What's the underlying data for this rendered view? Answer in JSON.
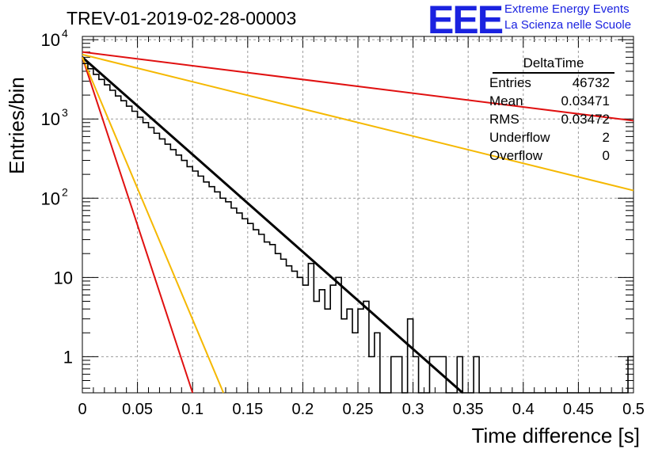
{
  "header": {
    "title": "TREV-01-2019-02-28-00003",
    "logo": "EEE",
    "logo_line1": "Extreme Energy Events",
    "logo_line2": "La Scienza nelle Scuole"
  },
  "stats_box": {
    "name": "DeltaTime",
    "rows": [
      {
        "label": "Entries",
        "value": "46732"
      },
      {
        "label": "Mean",
        "value": "0.03471"
      },
      {
        "label": "RMS",
        "value": "0.03472"
      },
      {
        "label": "Underflow",
        "value": "2"
      },
      {
        "label": "Overflow",
        "value": "0"
      }
    ]
  },
  "chart_data": {
    "type": "line",
    "title": "TREV-01-2019-02-28-00003",
    "xlabel": "Time difference [s]",
    "ylabel": "Entries/bin",
    "xlim": [
      0,
      0.5
    ],
    "ylim": [
      0.35,
      11000
    ],
    "yscale": "log",
    "grid": true,
    "x_ticks": [
      "0",
      "0.05",
      "0.1",
      "0.15",
      "0.2",
      "0.25",
      "0.3",
      "0.35",
      "0.4",
      "0.45",
      "0.5"
    ],
    "y_ticks": [
      {
        "value": 1,
        "label": "1"
      },
      {
        "value": 10,
        "label": "10"
      },
      {
        "value": 100,
        "label": "10^2"
      },
      {
        "value": 1000,
        "label": "10^3"
      },
      {
        "value": 10000,
        "label": "10^4"
      }
    ],
    "histogram": {
      "bin_width": 0.005,
      "values": [
        5000,
        4300,
        3650,
        3150,
        2700,
        2300,
        1950,
        1700,
        1450,
        1250,
        1050,
        900,
        780,
        660,
        560,
        480,
        410,
        350,
        300,
        250,
        220,
        190,
        160,
        140,
        120,
        100,
        90,
        75,
        65,
        55,
        48,
        40,
        35,
        28,
        26,
        20,
        17,
        14,
        12,
        10,
        8,
        15,
        5,
        7,
        4,
        8,
        10,
        3,
        4,
        2,
        4,
        5,
        1,
        2,
        0,
        0,
        1,
        1,
        0,
        3,
        1,
        0,
        0,
        1,
        1,
        1,
        0,
        0,
        1,
        0,
        0,
        1,
        0,
        0,
        0,
        0,
        0,
        0,
        0,
        0,
        0,
        0,
        0,
        0,
        0,
        0,
        0,
        0,
        0,
        0,
        0,
        0,
        0,
        0,
        0,
        0,
        0,
        0,
        0,
        1
      ]
    },
    "curves": [
      {
        "color": "#000000",
        "x": [
          0,
          0.345
        ],
        "y": [
          6000,
          0.35
        ]
      },
      {
        "color": "#e01010",
        "x": [
          0,
          0.5
        ],
        "y": [
          7000,
          950
        ]
      },
      {
        "color": "#f5b800",
        "x": [
          0,
          0.5
        ],
        "y": [
          6500,
          125
        ]
      },
      {
        "color": "#e01010",
        "x": [
          0,
          0.1
        ],
        "y": [
          6000,
          0.35
        ]
      },
      {
        "color": "#f5b800",
        "x": [
          0,
          0.128
        ],
        "y": [
          6000,
          0.35
        ]
      }
    ]
  }
}
